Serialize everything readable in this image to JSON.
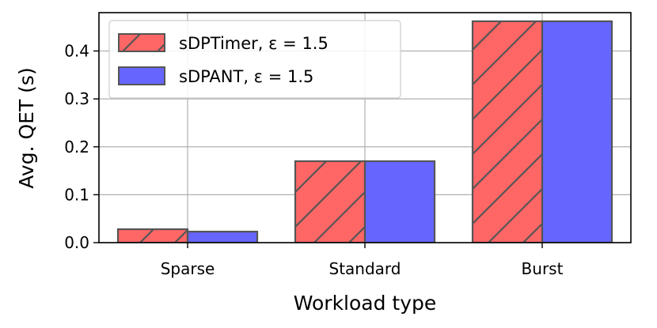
{
  "chart_data": {
    "type": "bar",
    "categories": [
      "Sparse",
      "Standard",
      "Burst"
    ],
    "series": [
      {
        "name": "sDPTimer,  ε = 1.5",
        "values": [
          0.028,
          0.17,
          0.462
        ],
        "color": "#ff6666",
        "hatch": true
      },
      {
        "name": "sDPANT,  ε = 1.5",
        "values": [
          0.023,
          0.17,
          0.462
        ],
        "color": "#6666ff",
        "hatch": false
      }
    ],
    "xlabel": "Workload type",
    "ylabel": "Avg. QET (s)",
    "ylim": [
      0,
      0.48
    ],
    "yticks": [
      "0.0",
      "0.1",
      "0.2",
      "0.3",
      "0.4"
    ],
    "grid": true,
    "legend_position": "top-left"
  }
}
